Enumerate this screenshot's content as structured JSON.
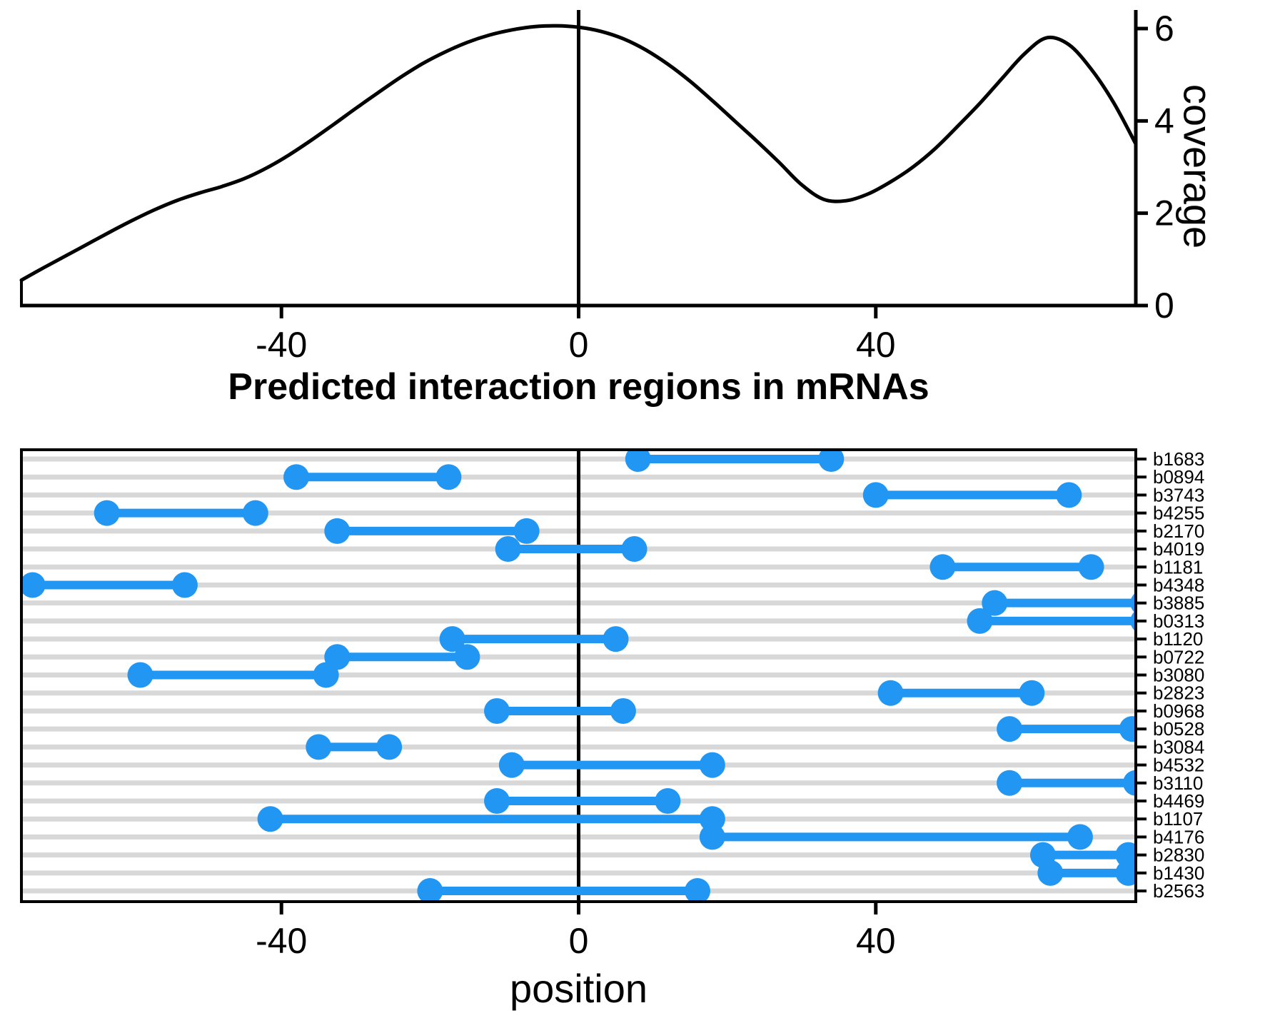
{
  "title": "Predicted interaction regions in mRNAs",
  "labels": {
    "coverage_axis": "coverage",
    "position_axis": "position"
  },
  "colors": {
    "segment_blue": "#2196F3",
    "row_line_gray": "#D8D8D8",
    "line_black": "#000000"
  },
  "chart_data": [
    {
      "type": "line",
      "name": "coverage-density-curve",
      "ylabel": "coverage",
      "xlim": [
        -75,
        75
      ],
      "ylim": [
        0,
        6.4
      ],
      "x_ticks": [
        -40,
        0,
        40
      ],
      "y_ticks": [
        0,
        2,
        4,
        6
      ],
      "vline_x": 0,
      "grid": false,
      "x": [
        -75,
        -72,
        -69,
        -66,
        -63,
        -60,
        -57,
        -54,
        -51,
        -48,
        -45,
        -42,
        -39,
        -36,
        -33,
        -30,
        -27,
        -24,
        -21,
        -18,
        -15,
        -12,
        -9,
        -6,
        -3,
        0,
        3,
        6,
        9,
        12,
        15,
        18,
        21,
        24,
        27,
        30,
        33,
        36,
        39,
        42,
        45,
        48,
        51,
        54,
        57,
        60,
        63,
        66,
        69,
        72,
        75
      ],
      "y": [
        0.55,
        0.82,
        1.08,
        1.34,
        1.6,
        1.85,
        2.08,
        2.28,
        2.44,
        2.58,
        2.75,
        2.98,
        3.26,
        3.58,
        3.92,
        4.27,
        4.61,
        4.94,
        5.24,
        5.49,
        5.7,
        5.86,
        5.97,
        6.04,
        6.06,
        6.03,
        5.94,
        5.78,
        5.54,
        5.23,
        4.86,
        4.44,
        4.0,
        3.56,
        3.1,
        2.62,
        2.3,
        2.27,
        2.42,
        2.68,
        3.0,
        3.4,
        3.88,
        4.38,
        4.92,
        5.45,
        5.8,
        5.65,
        5.12,
        4.4,
        3.5
      ]
    },
    {
      "type": "segment-range",
      "name": "interaction-regions",
      "xlabel": "position",
      "xlim": [
        -75,
        75
      ],
      "x_ticks": [
        -40,
        0,
        40
      ],
      "vline_x": 0,
      "rows": [
        {
          "label": "b1683",
          "start": 8,
          "end": 34
        },
        {
          "label": "b0894",
          "start": -38,
          "end": -17.5
        },
        {
          "label": "b3743",
          "start": 40,
          "end": 66
        },
        {
          "label": "b4255",
          "start": -63.5,
          "end": -43.5
        },
        {
          "label": "b2170",
          "start": -32.5,
          "end": -7
        },
        {
          "label": "b4019",
          "start": -9.5,
          "end": 7.5
        },
        {
          "label": "b1181",
          "start": 49,
          "end": 69
        },
        {
          "label": "b4348",
          "start": -73.5,
          "end": -53
        },
        {
          "label": "b3885",
          "start": 56,
          "end": 76,
          "clipped_right": true
        },
        {
          "label": "b0313",
          "start": 54,
          "end": 76,
          "clipped_right": true
        },
        {
          "label": "b1120",
          "start": -17,
          "end": 5
        },
        {
          "label": "b0722",
          "start": -32.5,
          "end": -15
        },
        {
          "label": "b3080",
          "start": -59,
          "end": -34
        },
        {
          "label": "b2823",
          "start": 42,
          "end": 61
        },
        {
          "label": "b0968",
          "start": -11,
          "end": 6
        },
        {
          "label": "b0528",
          "start": 58,
          "end": 74.5
        },
        {
          "label": "b3084",
          "start": -35,
          "end": -25.5
        },
        {
          "label": "b4532",
          "start": -9,
          "end": 18
        },
        {
          "label": "b3110",
          "start": 58,
          "end": 75,
          "clipped_right": true
        },
        {
          "label": "b4469",
          "start": -11,
          "end": 12
        },
        {
          "label": "b1107",
          "start": -41.5,
          "end": 18
        },
        {
          "label": "b4176",
          "start": 18,
          "end": 67.5
        },
        {
          "label": "b2830",
          "start": 62.5,
          "end": 74
        },
        {
          "label": "b1430",
          "start": 63.5,
          "end": 74
        },
        {
          "label": "b2563",
          "start": -20,
          "end": 16
        }
      ]
    }
  ]
}
